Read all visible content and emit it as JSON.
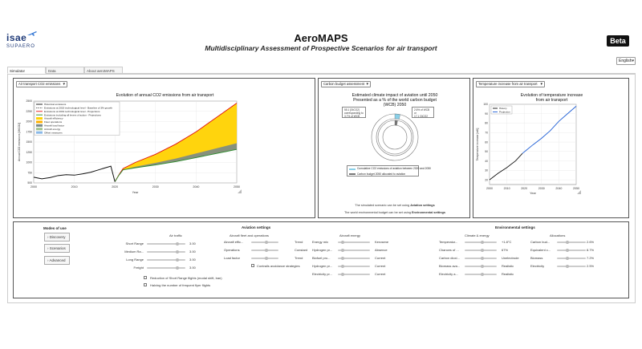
{
  "header": {
    "logo_main": "isae",
    "logo_sub": "SUPAERO",
    "title": "AeroMAPS",
    "subtitle": "Multidisciplinary Assessment of Prospective Scenarios for air transport",
    "beta": "Beta",
    "language": "English"
  },
  "tabs": [
    "Simulator",
    "Data",
    "About aeroMAPS"
  ],
  "panels": {
    "left": {
      "selector": "Air transport CO2 emissions",
      "title": "Evolution of annual CO2 emissions from air transport",
      "ylabel": "Annual CO2 emissions [MtCO2]",
      "xlabel": "Year",
      "yticks": [
        "2500",
        "2250",
        "2000",
        "1750",
        "1500",
        "1250",
        "1000",
        "750",
        "500"
      ],
      "xticks": [
        "2000",
        "2010",
        "2020",
        "2030",
        "2040",
        "2050"
      ],
      "legend": [
        {
          "label": "Historical emissions",
          "color": "#111111",
          "style": "line"
        },
        {
          "label": "Emissions at 2019 technological level - Baseline of 3% growth",
          "color": "#555555",
          "style": "dash"
        },
        {
          "label": "Emissions at 2019 technological level - Projections",
          "color": "#e01010",
          "style": "line"
        },
        {
          "label": "Emissions including all levers of action - Projections",
          "color": "#2a8a2a",
          "style": "line"
        },
        {
          "label": "Aircraft efficiency",
          "color": "#ffd200",
          "style": "fill"
        },
        {
          "label": "Fleet operations",
          "color": "#ffb000",
          "style": "fill"
        },
        {
          "label": "Aircraft load factor",
          "color": "#7a8a8a",
          "style": "fill"
        },
        {
          "label": "Aircraft energy",
          "color": "#9fc28a",
          "style": "fill"
        },
        {
          "label": "Offset measures",
          "color": "#8ab8e8",
          "style": "fill"
        }
      ]
    },
    "middle": {
      "selector": "Carbon budget assessment",
      "title_line1": "Estimated climate impact of aviation until 2050",
      "title_line2": "Presented as a % of the world carbon budget",
      "title_line3": "(WCB) 2050",
      "annot_left": [
        "55.1 [GtCO2]",
        "corresponding to",
        "3.7% of WCB"
      ],
      "annot_right": [
        "2.6% of WCB",
        "or",
        "17.1 GtCO2"
      ],
      "legend": [
        "Cumulative CO2 emissions of aviation between 2020 and 2050",
        "Carbon budget 2050 allocated to aviation"
      ],
      "note1_prefix": "The simulated scenario can be set using ",
      "note1_bold": "Aviation settings",
      "note2_prefix": "The world environmental budget can be set using ",
      "note2_bold": "Environmental settings"
    },
    "right": {
      "selector": "Temperature increase from air transport",
      "title_line1": "Evolution of temperature increase",
      "title_line2": "from air transport",
      "ylabel": "Temperature increase [mK]",
      "xlabel": "Year",
      "yticks": [
        "100",
        "90",
        "80",
        "70",
        "60",
        "50",
        "40",
        "30",
        "20"
      ],
      "xticks": [
        "2000",
        "2010",
        "2020",
        "2030",
        "2040",
        "2050"
      ],
      "legend": [
        "History",
        "Projection"
      ]
    }
  },
  "chart_data": [
    {
      "type": "area",
      "title": "Evolution of annual CO2 emissions from air transport",
      "xlabel": "Year",
      "ylabel": "Annual CO2 emissions [MtCO2]",
      "xlim": [
        2000,
        2050
      ],
      "ylim": [
        500,
        2500
      ],
      "series": [
        {
          "name": "Historical emissions",
          "x": [
            2000,
            2002,
            2004,
            2006,
            2008,
            2010,
            2012,
            2014,
            2016,
            2018,
            2019,
            2020
          ],
          "values": [
            640,
            600,
            630,
            680,
            700,
            690,
            720,
            760,
            820,
            880,
            910,
            530
          ]
        },
        {
          "name": "Emissions at 2019 technological level - Projections",
          "x": [
            2020,
            2021,
            2022,
            2025,
            2030,
            2035,
            2040,
            2045,
            2050
          ],
          "values": [
            530,
            700,
            850,
            1000,
            1200,
            1450,
            1750,
            2100,
            2450
          ]
        },
        {
          "name": "Emissions including all levers of action - Projections",
          "x": [
            2020,
            2021,
            2022,
            2025,
            2030,
            2035,
            2040,
            2045,
            2050
          ],
          "values": [
            530,
            690,
            820,
            870,
            940,
            1020,
            1120,
            1220,
            1320
          ]
        }
      ]
    },
    {
      "type": "pie",
      "title": "Estimated climate impact of aviation until 2050",
      "categories": [
        "Cumulative CO2 emissions of aviation between 2020 and 2050",
        "Carbon budget 2050 allocated to aviation"
      ],
      "values": [
        3.7,
        2.6
      ]
    },
    {
      "type": "line",
      "title": "Evolution of temperature increase from air transport",
      "xlabel": "Year",
      "ylabel": "Temperature increase [mK]",
      "xlim": [
        2000,
        2050
      ],
      "ylim": [
        15,
        100
      ],
      "series": [
        {
          "name": "History",
          "x": [
            2000,
            2005,
            2010,
            2015,
            2019
          ],
          "values": [
            20,
            27,
            33,
            40,
            48
          ]
        },
        {
          "name": "Projection",
          "x": [
            2019,
            2021,
            2025,
            2030,
            2035,
            2040,
            2045,
            2050
          ],
          "values": [
            48,
            51,
            57,
            64,
            72,
            82,
            90,
            98
          ]
        }
      ]
    }
  ],
  "settings": {
    "modes_title": "Modes of use",
    "modes": [
      "Discovery",
      "Scenarios",
      "Advanced"
    ],
    "aviation_title": "Aviation settings",
    "air_traffic_title": "Air traffic",
    "air_traffic": [
      {
        "label": "Short Range",
        "value": "3.00"
      },
      {
        "label": "Medium Ra...",
        "value": "3.00"
      },
      {
        "label": "Long Range",
        "value": "3.00"
      },
      {
        "label": "Freight",
        "value": "3.00"
      }
    ],
    "checkboxes": [
      "Reduction of Short Range flights (modal shift, ban)",
      "Halving the number of frequent flyer flights"
    ],
    "fleet_title": "Aircraft fleet and operations",
    "fleet": [
      {
        "label": "Aircraft effic...",
        "value": "Trend"
      },
      {
        "label": "Operations",
        "value": "Constant"
      },
      {
        "label": "Load factor",
        "value": "Trend"
      }
    ],
    "contrails_label": "Contrails avoidance strategies",
    "energy_title": "Aircraft energy",
    "energy": [
      {
        "label": "Energy mix",
        "value": "Kerosene"
      },
      {
        "label": "Hydrogen pr...",
        "value": "Absence"
      },
      {
        "label": "Biofuel pro...",
        "value": "Current"
      },
      {
        "label": "Hydrogen pr...",
        "value": "Current"
      },
      {
        "label": "Electricity pr...",
        "value": "Current"
      }
    ],
    "environment_title": "Environmental settings",
    "climate_title": "Climate & energy",
    "climate": [
      {
        "label": "Temperatur...",
        "value": "+1.8°C"
      },
      {
        "label": "Chances of ...",
        "value": "67%"
      },
      {
        "label": "Carbon dioxi...",
        "value": "Unelectrode"
      },
      {
        "label": "Biomass ava...",
        "value": "Realistic"
      },
      {
        "label": "Electricity a...",
        "value": "Realistic"
      }
    ],
    "allocations_title": "Allocations",
    "allocations": [
      {
        "label": "Carbon bud...",
        "value": "2.6%"
      },
      {
        "label": "Equivalent c...",
        "value": "8.7%"
      },
      {
        "label": "Biomass",
        "value": "7.2%"
      },
      {
        "label": "Electricity",
        "value": "2.5%"
      }
    ]
  }
}
